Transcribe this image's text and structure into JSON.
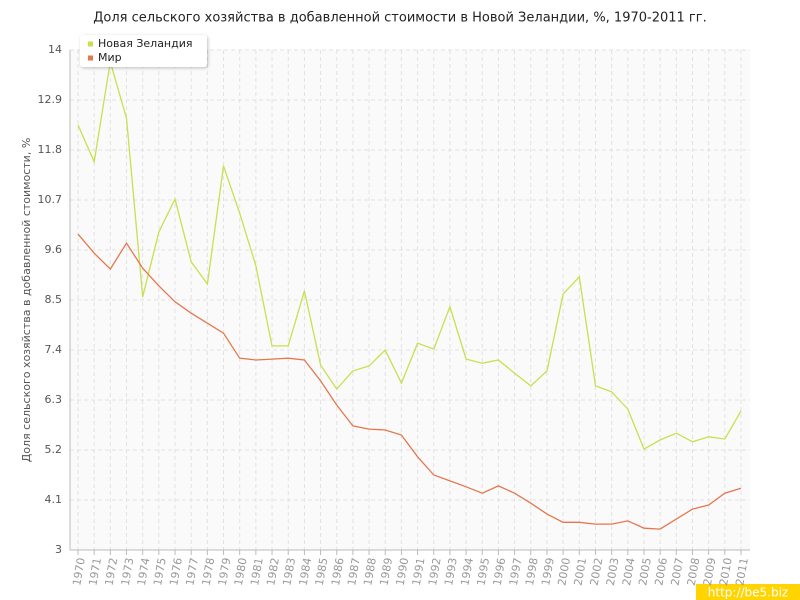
{
  "chart_data": {
    "type": "line",
    "title": "Доля сельского хозяйства в добавленной стоимости в Новой Зеландии, %, 1970-2011 гг.",
    "y_label": "Доля сельского хозяйства в добавленной стоимости, %",
    "watermark": "http://be5.biz",
    "categories": [
      "1970",
      "1971",
      "1972",
      "1973",
      "1974",
      "1975",
      "1976",
      "1977",
      "1978",
      "1979",
      "1980",
      "1981",
      "1982",
      "1983",
      "1984",
      "1985",
      "1986",
      "1987",
      "1988",
      "1989",
      "1990",
      "1991",
      "1992",
      "1993",
      "1994",
      "1995",
      "1996",
      "1997",
      "1998",
      "1999",
      "2000",
      "2001",
      "2002",
      "2003",
      "2004",
      "2005",
      "2006",
      "2007",
      "2008",
      "2009",
      "2010",
      "2011"
    ],
    "series": [
      {
        "name": "Новая Зеландия",
        "color": "#c8e04f",
        "values": [
          12.35,
          11.54,
          13.74,
          12.5,
          8.57,
          10.0,
          10.72,
          9.34,
          8.85,
          11.45,
          10.41,
          9.25,
          7.49,
          7.49,
          8.7,
          7.07,
          6.54,
          6.94,
          7.05,
          7.4,
          6.67,
          7.55,
          7.42,
          8.35,
          7.2,
          7.11,
          7.18,
          6.89,
          6.61,
          6.94,
          8.63,
          9.01,
          6.61,
          6.48,
          6.1,
          5.22,
          5.42,
          5.57,
          5.38,
          5.49,
          5.44,
          6.06
        ]
      },
      {
        "name": "Мир",
        "color": "#e5774f",
        "values": [
          9.95,
          9.53,
          9.18,
          9.75,
          9.2,
          8.81,
          8.46,
          8.21,
          7.99,
          7.77,
          7.22,
          7.18,
          7.2,
          7.22,
          7.18,
          6.72,
          6.19,
          5.73,
          5.66,
          5.64,
          5.53,
          5.05,
          4.65,
          4.52,
          4.39,
          4.25,
          4.41,
          4.25,
          4.03,
          3.79,
          3.61,
          3.61,
          3.57,
          3.57,
          3.64,
          3.48,
          3.46,
          3.68,
          3.9,
          3.99,
          4.25,
          4.36
        ]
      }
    ],
    "ylim": [
      3,
      14
    ],
    "yticks": [
      3,
      4.1,
      5.2,
      6.3,
      7.4,
      8.5,
      9.6,
      10.7,
      11.8,
      12.9,
      14
    ],
    "grid": true,
    "legend": "top-left"
  }
}
